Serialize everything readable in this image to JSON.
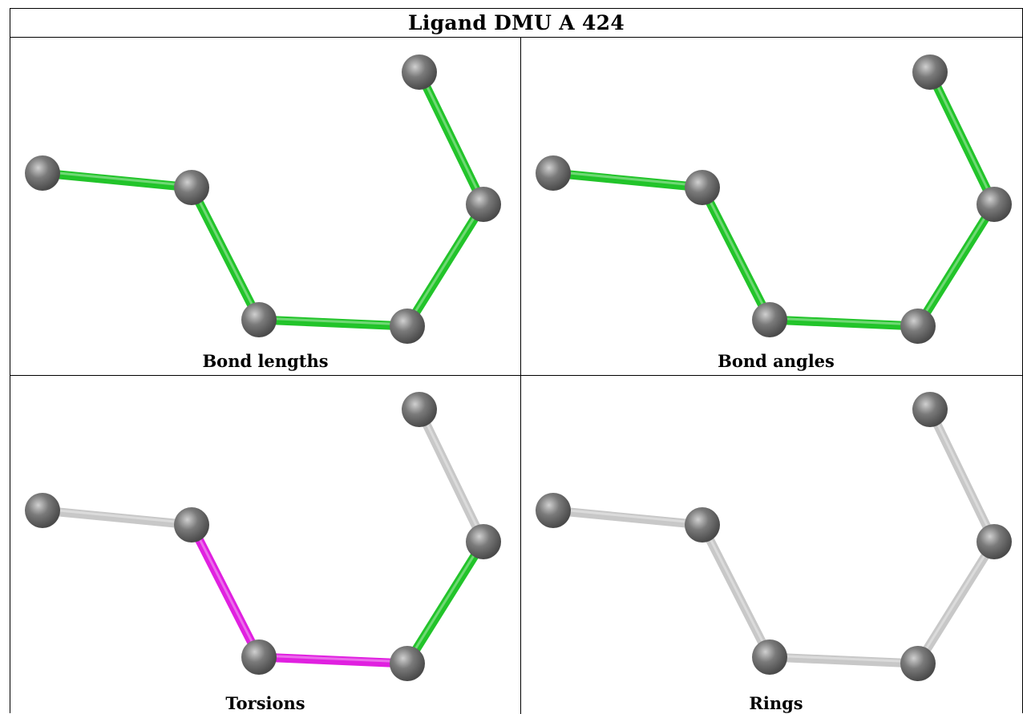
{
  "title": "Ligand DMU A 424",
  "panels": [
    {
      "caption": "Bond lengths",
      "bond_colors": [
        "green",
        "green",
        "green",
        "green",
        "green"
      ]
    },
    {
      "caption": "Bond angles",
      "bond_colors": [
        "green",
        "green",
        "green",
        "green",
        "green"
      ]
    },
    {
      "caption": "Torsions",
      "bond_colors": [
        "gray",
        "magenta",
        "magenta",
        "green",
        "gray"
      ]
    },
    {
      "caption": "Rings",
      "bond_colors": [
        "gray",
        "gray",
        "gray",
        "gray",
        "gray"
      ]
    }
  ],
  "colors": {
    "green": "#22c42a",
    "magenta": "#e020e0",
    "gray": "#c8c8c8",
    "atom": "#7a7a7a"
  }
}
